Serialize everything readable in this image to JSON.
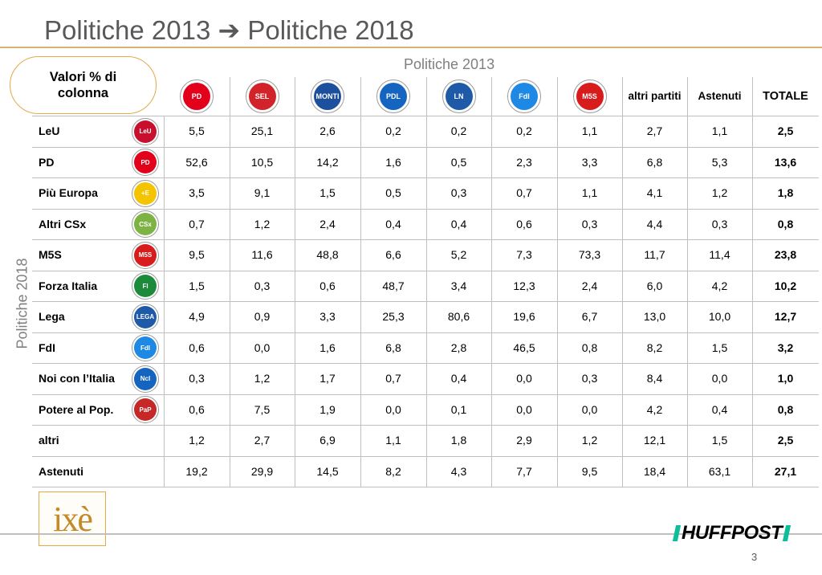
{
  "title": {
    "part1": "Politiche 2013",
    "arrow": "➔",
    "part2": "Politiche 2018"
  },
  "value_label": "Valori % di colonna",
  "column_header": "Politiche 2013",
  "row_header": "Politiche 2018",
  "columns": [
    {
      "id": "pd2013",
      "type": "logo",
      "logo": "PD",
      "color": "#e2001a"
    },
    {
      "id": "sel",
      "type": "logo",
      "logo": "SEL",
      "color": "#d2232a"
    },
    {
      "id": "scelta-civica",
      "type": "logo",
      "logo": "MONTI",
      "color": "#1c4f9c"
    },
    {
      "id": "pdl",
      "type": "logo",
      "logo": "PDL",
      "color": "#1565c0"
    },
    {
      "id": "lega-nord",
      "type": "logo",
      "logo": "LN",
      "color": "#1e5aa8"
    },
    {
      "id": "fdi2013",
      "type": "logo",
      "logo": "FdI",
      "color": "#1e88e5"
    },
    {
      "id": "m5s2013",
      "type": "logo",
      "logo": "M5S",
      "color": "#d81b1b"
    },
    {
      "id": "altri-partiti",
      "type": "text",
      "label": "altri partiti"
    },
    {
      "id": "astenuti2013",
      "type": "text",
      "label": "Astenuti"
    },
    {
      "id": "totale",
      "type": "text",
      "label": "TOTALE"
    }
  ],
  "rows": [
    {
      "label": "LeU",
      "logo": "LeU",
      "color": "#c8102e",
      "values": [
        "5,5",
        "25,1",
        "2,6",
        "0,2",
        "0,2",
        "0,2",
        "1,1",
        "2,7",
        "1,1",
        "2,5"
      ]
    },
    {
      "label": "PD",
      "logo": "PD",
      "color": "#e2001a",
      "values": [
        "52,6",
        "10,5",
        "14,2",
        "1,6",
        "0,5",
        "2,3",
        "3,3",
        "6,8",
        "5,3",
        "13,6"
      ]
    },
    {
      "label": "Più Europa",
      "logo": "+E",
      "color": "#f4c400",
      "values": [
        "3,5",
        "9,1",
        "1,5",
        "0,5",
        "0,3",
        "0,7",
        "1,1",
        "4,1",
        "1,2",
        "1,8"
      ]
    },
    {
      "label": "Altri CSx",
      "logo": "CSx",
      "color": "#7cb342",
      "values": [
        "0,7",
        "1,2",
        "2,4",
        "0,4",
        "0,4",
        "0,6",
        "0,3",
        "4,4",
        "0,3",
        "0,8"
      ]
    },
    {
      "label": "M5S",
      "logo": "M5S",
      "color": "#d81b1b",
      "values": [
        "9,5",
        "11,6",
        "48,8",
        "6,6",
        "5,2",
        "7,3",
        "73,3",
        "11,7",
        "11,4",
        "23,8"
      ]
    },
    {
      "label": "Forza Italia",
      "logo": "FI",
      "color": "#1b8a3a",
      "values": [
        "1,5",
        "0,3",
        "0,6",
        "48,7",
        "3,4",
        "12,3",
        "2,4",
        "6,0",
        "4,2",
        "10,2"
      ]
    },
    {
      "label": "Lega",
      "logo": "LEGA",
      "color": "#1e5aa8",
      "values": [
        "4,9",
        "0,9",
        "3,3",
        "25,3",
        "80,6",
        "19,6",
        "6,7",
        "13,0",
        "10,0",
        "12,7"
      ]
    },
    {
      "label": "FdI",
      "logo": "FdI",
      "color": "#1e88e5",
      "values": [
        "0,6",
        "0,0",
        "1,6",
        "6,8",
        "2,8",
        "46,5",
        "0,8",
        "8,2",
        "1,5",
        "3,2"
      ]
    },
    {
      "label": "Noi con l’Italia",
      "logo": "NcI",
      "color": "#1565c0",
      "values": [
        "0,3",
        "1,2",
        "1,7",
        "0,7",
        "0,4",
        "0,0",
        "0,3",
        "8,4",
        "0,0",
        "1,0"
      ]
    },
    {
      "label": "Potere al Pop.",
      "logo": "PaP",
      "color": "#c62828",
      "values": [
        "0,6",
        "7,5",
        "1,9",
        "0,0",
        "0,1",
        "0,0",
        "0,0",
        "4,2",
        "0,4",
        "0,8"
      ]
    },
    {
      "label": "altri",
      "logo": "",
      "color": "",
      "values": [
        "1,2",
        "2,7",
        "6,9",
        "1,1",
        "1,8",
        "2,9",
        "1,2",
        "12,1",
        "1,5",
        "2,5"
      ]
    },
    {
      "label": "Astenuti",
      "logo": "",
      "color": "",
      "values": [
        "19,2",
        "29,9",
        "14,5",
        "8,2",
        "4,3",
        "7,7",
        "9,5",
        "18,4",
        "63,1",
        "27,1"
      ]
    }
  ],
  "brand_left": "ixè",
  "brand_right": "HUFFPOST",
  "page_number": "3",
  "colors": {
    "accent": "#e3a94b",
    "title_text": "#595959",
    "muted_header": "#7f7f7f",
    "grid": "#bfbfbf",
    "huffpost_accent": "#0dbe98"
  }
}
